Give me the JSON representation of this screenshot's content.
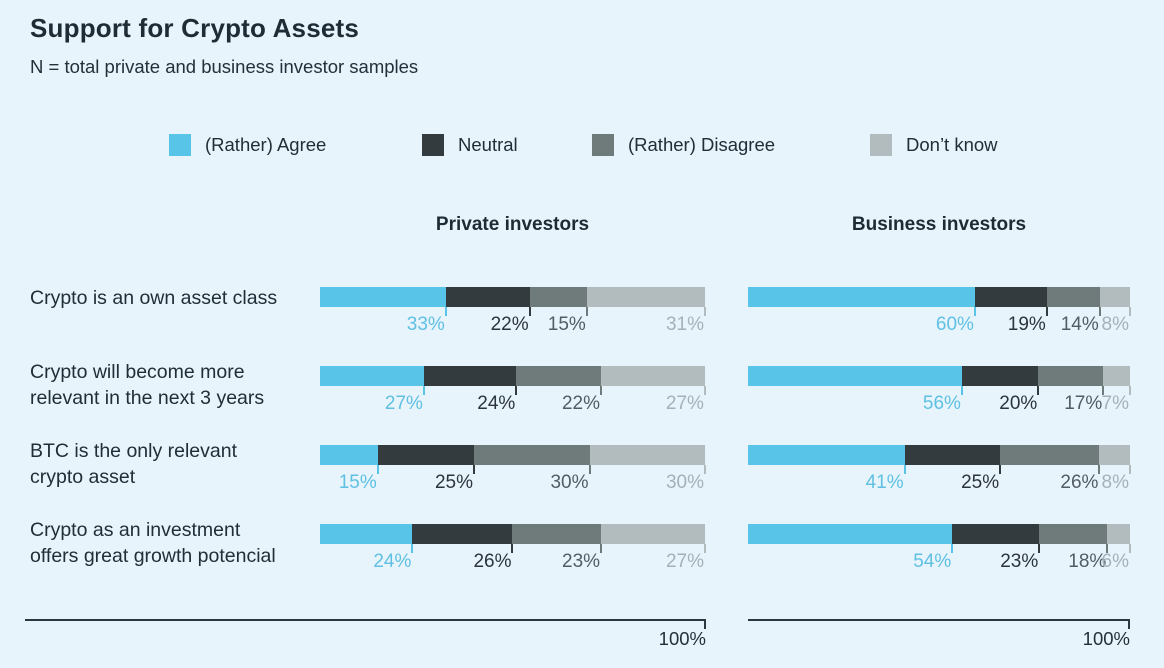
{
  "header": {
    "title": "Support for Crypto Assets",
    "subtitle": "N = total private and business investor samples"
  },
  "legend": {
    "items": [
      {
        "label": "(Rather) Agree",
        "color": "#58c4e7"
      },
      {
        "label": "Neutral",
        "color": "#343b3f"
      },
      {
        "label": "(Rather) Disagree",
        "color": "#6f7a7b"
      },
      {
        "label": "Don’t know",
        "color": "#b2bbbe"
      }
    ]
  },
  "columns": {
    "private": "Private investors",
    "business": "Business investors"
  },
  "axis": {
    "max_label": "100%"
  },
  "chart_data": {
    "type": "bar",
    "stacked": true,
    "orientation": "horizontal",
    "unit": "%",
    "x_max": 100,
    "legend_position": "top",
    "series": [
      {
        "name": "(Rather) Agree",
        "color": "#58c4e7",
        "label_color": "#5fc0e2"
      },
      {
        "name": "Neutral",
        "color": "#343b3f",
        "label_color": "#2b343b"
      },
      {
        "name": "(Rather) Disagree",
        "color": "#6f7a7b",
        "label_color": "#525c63"
      },
      {
        "name": "Don’t know",
        "color": "#b2bbbe",
        "label_color": "#a6b1b7"
      }
    ],
    "groups": [
      "Private investors",
      "Business investors"
    ],
    "rows": [
      {
        "label": "Crypto is an own asset class",
        "private": [
          33,
          22,
          15,
          31
        ],
        "business": [
          60,
          19,
          14,
          8
        ]
      },
      {
        "label": "Crypto will become more\nrelevant in the next 3 years",
        "private": [
          27,
          24,
          22,
          27
        ],
        "business": [
          56,
          20,
          17,
          7
        ]
      },
      {
        "label": "BTC is the only relevant\ncrypto asset",
        "private": [
          15,
          25,
          30,
          30
        ],
        "business": [
          41,
          25,
          26,
          8
        ]
      },
      {
        "label": "Crypto as an investment\noffers great growth potencial",
        "private": [
          24,
          26,
          23,
          27
        ],
        "business": [
          54,
          23,
          18,
          6
        ]
      }
    ]
  }
}
